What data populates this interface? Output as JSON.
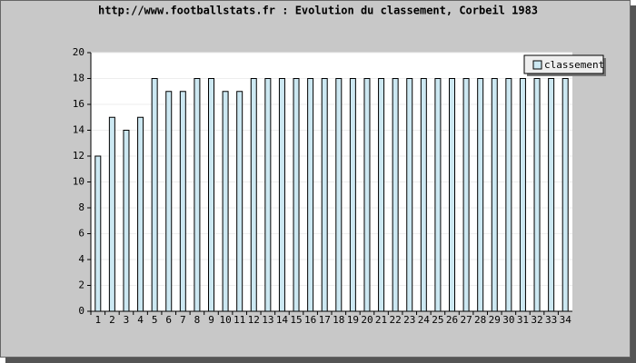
{
  "chart_data": {
    "type": "bar",
    "title": "http://www.footballstats.fr : Evolution du classement, Corbeil 1983",
    "categories": [
      "1",
      "2",
      "3",
      "4",
      "5",
      "6",
      "7",
      "8",
      "9",
      "10",
      "11",
      "12",
      "13",
      "14",
      "15",
      "16",
      "17",
      "18",
      "19",
      "20",
      "21",
      "22",
      "23",
      "24",
      "25",
      "26",
      "27",
      "28",
      "29",
      "30",
      "31",
      "32",
      "33",
      "34"
    ],
    "series": [
      {
        "name": "classement",
        "color": "#cce8f2",
        "values": [
          12,
          15,
          14,
          15,
          18,
          17,
          17,
          18,
          18,
          17,
          17,
          18,
          18,
          18,
          18,
          18,
          18,
          18,
          18,
          18,
          18,
          18,
          18,
          18,
          18,
          18,
          18,
          18,
          18,
          18,
          18,
          18,
          18,
          18
        ]
      }
    ],
    "ylim": [
      0,
      20
    ],
    "yticks": [
      0,
      2,
      4,
      6,
      8,
      10,
      12,
      14,
      16,
      18,
      20
    ],
    "grid": true,
    "legend": "top-right"
  }
}
